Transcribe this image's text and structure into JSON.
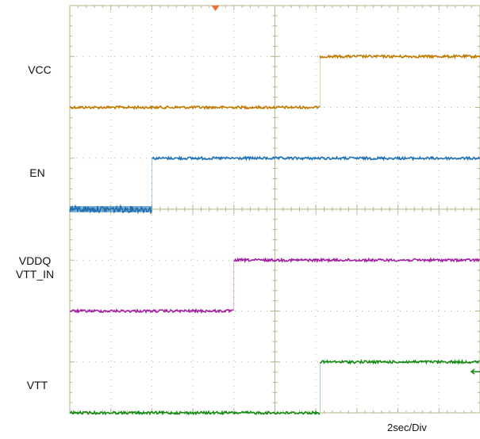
{
  "chart_data": {
    "type": "line",
    "title": "",
    "timebase_label": "2sec/Div",
    "x_divisions": 10,
    "y_divisions": 8,
    "x_unit": "div",
    "grid": true,
    "trigger_marker": true,
    "series": [
      {
        "name": "VCC",
        "labels": [
          "VCC"
        ],
        "color": "#c07a00",
        "high_level_div": 7,
        "low_level_div": 6,
        "steps": [
          {
            "x": 0,
            "level": "low"
          },
          {
            "x": 6.1,
            "level": "high"
          }
        ]
      },
      {
        "name": "EN",
        "labels": [
          "EN"
        ],
        "color": "#1e6fb3",
        "high_level_div": 5,
        "low_level_div": 4,
        "steps": [
          {
            "x": 0,
            "level": "low"
          },
          {
            "x": 2.0,
            "level": "high"
          }
        ]
      },
      {
        "name": "VDDQ VTT_IN",
        "labels": [
          "VDDQ",
          "VTT_IN"
        ],
        "color": "#a020a0",
        "high_level_div": 3,
        "low_level_div": 2,
        "steps": [
          {
            "x": 0,
            "level": "low"
          },
          {
            "x": 4.0,
            "level": "high"
          }
        ]
      },
      {
        "name": "VTT",
        "labels": [
          "VTT"
        ],
        "color": "#138a13",
        "high_level_div": 1,
        "low_level_div": 0,
        "steps": [
          {
            "x": 0,
            "level": "low"
          },
          {
            "x": 6.1,
            "level": "high"
          }
        ]
      }
    ]
  }
}
